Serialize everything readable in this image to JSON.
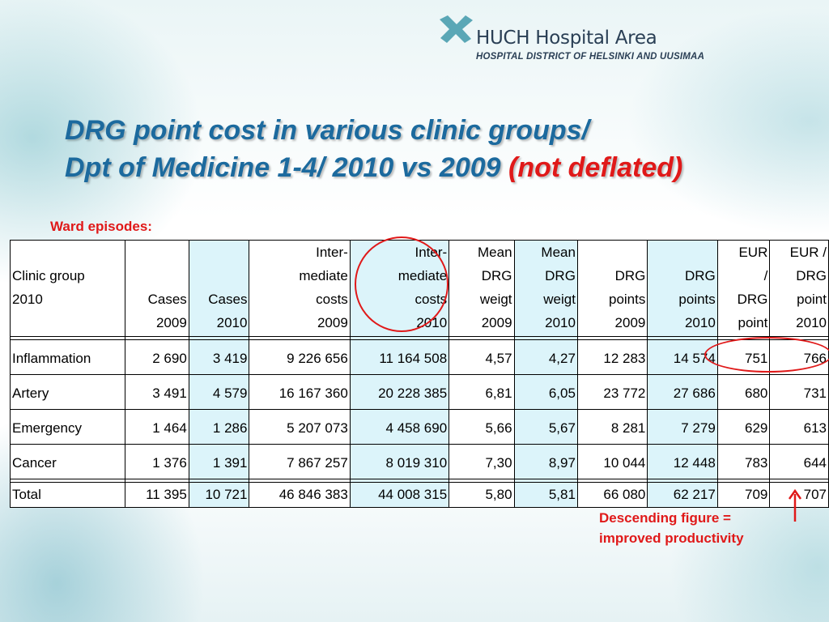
{
  "logo": {
    "name": "HUCH Hospital Area",
    "subtitle": "HOSPITAL DISTRICT OF HELSINKI AND UUSIMAA",
    "colors": {
      "primary": "#2a3f55",
      "accent": "#5aa7b6"
    }
  },
  "title": {
    "line1": "DRG point cost in various clinic groups/",
    "line2": "Dpt of Medicine 1-4/ 2010 vs 2009 ",
    "line2_red": "(not deflated)"
  },
  "ward_label": "Ward episodes:",
  "table": {
    "headers": [
      [
        "",
        "Clinic group",
        "2010",
        ""
      ],
      [
        "",
        "",
        "Cases",
        "2009"
      ],
      [
        "",
        "",
        "Cases",
        "2010"
      ],
      [
        "Inter-",
        "mediate",
        "costs",
        "2009"
      ],
      [
        "Inter-",
        "mediate",
        "costs",
        "2010"
      ],
      [
        "Mean",
        "DRG",
        "weigt",
        "2009"
      ],
      [
        "Mean",
        "DRG",
        "weigt",
        "2010"
      ],
      [
        "",
        "DRG",
        "points",
        "2009"
      ],
      [
        "",
        "DRG",
        "points",
        "2010"
      ],
      [
        "EUR",
        "/",
        "DRG",
        "point"
      ],
      [
        "EUR /",
        "DRG",
        "point",
        "2010"
      ]
    ],
    "rows": [
      [
        "Inflammation",
        "2 690",
        "3 419",
        "9 226 656",
        "11 164 508",
        "4,57",
        "4,27",
        "12 283",
        "14 574",
        "751",
        "766"
      ],
      [
        "Artery",
        "3 491",
        "4 579",
        "16 167 360",
        "20 228 385",
        "6,81",
        "6,05",
        "23 772",
        "27 686",
        "680",
        "731"
      ],
      [
        "Emergency",
        "1 464",
        "1 286",
        "5 207 073",
        "4 458 690",
        "5,66",
        "5,67",
        "8 281",
        "7 279",
        "629",
        "613"
      ],
      [
        "Cancer",
        "1 376",
        "1 391",
        "7 867 257",
        "8 019 310",
        "7,30",
        "8,97",
        "10 044",
        "12 448",
        "783",
        "644"
      ]
    ],
    "total": [
      "Total",
      "11 395",
      "10 721",
      "46 846 383",
      "44 008 315",
      "5,80",
      "5,81",
      "66 080",
      "62 217",
      "709",
      "707"
    ]
  },
  "note": {
    "line1": "Descending figure =",
    "line2": "improved  productivity"
  },
  "colors": {
    "title": "#1c6a9e",
    "highlight": "#e01919",
    "shaded_column": "#dcf4fa"
  }
}
